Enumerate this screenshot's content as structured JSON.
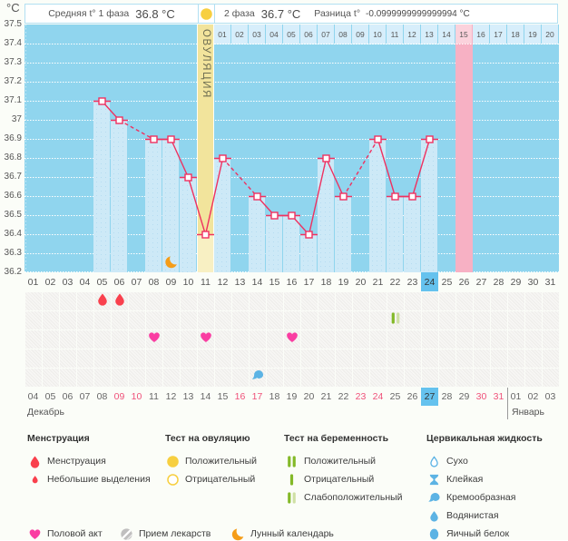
{
  "header": {
    "unit_label": "°C",
    "phase1_label": "Средняя t° 1 фаза",
    "phase1_value": "36.8 °C",
    "phase2_label": "2 фаза",
    "phase2_value": "36.7 °C",
    "diff_label": "Разница t°",
    "diff_value": "-0.0999999999999994 °C"
  },
  "chart_data": {
    "type": "line",
    "title": "Basal body temperature chart",
    "ylabel": "°C",
    "ylim": [
      36.2,
      37.5
    ],
    "yticks": [
      "37.5",
      "37.4",
      "37.3",
      "37.2",
      "37.1",
      "37",
      "36.9",
      "36.8",
      "36.7",
      "36.6",
      "36.5",
      "36.4",
      "36.3",
      "36.2"
    ],
    "x_days": [
      "01",
      "02",
      "03",
      "04",
      "05",
      "06",
      "07",
      "08",
      "09",
      "10",
      "11",
      "12",
      "13",
      "14",
      "15",
      "16",
      "17",
      "18",
      "19",
      "20",
      "21",
      "22",
      "23",
      "24",
      "25",
      "26",
      "27",
      "28",
      "29",
      "30",
      "31"
    ],
    "temps_by_day": {
      "5": 37.1,
      "6": 37.0,
      "8": 36.9,
      "9": 36.9,
      "10": 36.7,
      "11": 36.4,
      "12": 36.8,
      "14": 36.6,
      "15": 36.5,
      "16": 36.5,
      "17": 36.4,
      "18": 36.8,
      "19": 36.6,
      "21": 36.9,
      "22": 36.6,
      "23": 36.6,
      "24": 36.9
    },
    "ovulation_day": 11,
    "ovulation_label": "ОВУЛЯЦИЯ",
    "dpo_labels": [
      "01",
      "02",
      "03",
      "04",
      "05",
      "06",
      "07",
      "08",
      "09",
      "10",
      "11",
      "12",
      "13",
      "14",
      "15",
      "16",
      "17",
      "18",
      "19",
      "20"
    ],
    "dpo_highlight": "15",
    "expected_period_day": 26,
    "today_day": 24,
    "moon_day": 9,
    "line_color": "#ef3160",
    "bg_color": "#90d5ee",
    "bar_color": "#cde9f7",
    "ovulation_band_color": "#f2e49c",
    "pink_column_color": "#f7b1c4"
  },
  "markers": {
    "row_names": [
      "menstruation",
      "tests",
      "intercourse",
      "medication",
      "fluid"
    ],
    "items": [
      {
        "row": 0,
        "day": 5,
        "icon": "drop-red"
      },
      {
        "row": 0,
        "day": 6,
        "icon": "drop-red"
      },
      {
        "row": 1,
        "day": 22,
        "icon": "preg-weak"
      },
      {
        "row": 2,
        "day": 8,
        "icon": "heart"
      },
      {
        "row": 2,
        "day": 11,
        "icon": "heart"
      },
      {
        "row": 2,
        "day": 16,
        "icon": "heart"
      },
      {
        "row": 4,
        "day": 14,
        "icon": "fluid-creamy"
      }
    ]
  },
  "dates": {
    "month_left": "Декабрь",
    "month_right": "Январь",
    "cells": [
      {
        "d": "04"
      },
      {
        "d": "05"
      },
      {
        "d": "06"
      },
      {
        "d": "07"
      },
      {
        "d": "08"
      },
      {
        "d": "09",
        "weekend": true
      },
      {
        "d": "10",
        "weekend": true
      },
      {
        "d": "11"
      },
      {
        "d": "12"
      },
      {
        "d": "13"
      },
      {
        "d": "14"
      },
      {
        "d": "15"
      },
      {
        "d": "16",
        "weekend": true
      },
      {
        "d": "17",
        "weekend": true
      },
      {
        "d": "18"
      },
      {
        "d": "19"
      },
      {
        "d": "20"
      },
      {
        "d": "21"
      },
      {
        "d": "22"
      },
      {
        "d": "23",
        "weekend": true
      },
      {
        "d": "24",
        "weekend": true
      },
      {
        "d": "25"
      },
      {
        "d": "26"
      },
      {
        "d": "27",
        "today": true
      },
      {
        "d": "28"
      },
      {
        "d": "29"
      },
      {
        "d": "30",
        "weekend": true
      },
      {
        "d": "31",
        "weekend": true
      },
      {
        "d": "01",
        "january": true
      },
      {
        "d": "02",
        "january": true
      },
      {
        "d": "03",
        "january": true
      }
    ]
  },
  "legend": {
    "columns": [
      {
        "title": "Менструация",
        "items": [
          {
            "icon": "drop-red",
            "label": "Менструация"
          },
          {
            "icon": "drop-red-small",
            "label": "Небольшие выделения"
          }
        ]
      },
      {
        "title": "Тест на овуляцию",
        "items": [
          {
            "icon": "circle-yellow",
            "label": "Положительный"
          },
          {
            "icon": "circle-yellow-outline",
            "label": "Отрицательный"
          }
        ]
      },
      {
        "title": "Тест на беременность",
        "items": [
          {
            "icon": "preg-positive",
            "label": "Положительный"
          },
          {
            "icon": "preg-negative",
            "label": "Отрицательный"
          },
          {
            "icon": "preg-weak",
            "label": "Слабоположительный"
          }
        ]
      },
      {
        "title": "Цервикальная жидкость",
        "items": [
          {
            "icon": "fluid-dry",
            "label": "Сухо"
          },
          {
            "icon": "fluid-sticky",
            "label": "Клейкая"
          },
          {
            "icon": "fluid-creamy",
            "label": "Кремообразная"
          },
          {
            "icon": "fluid-watery",
            "label": "Водянистая"
          },
          {
            "icon": "fluid-eggwhite",
            "label": "Яичный белок"
          }
        ]
      }
    ],
    "actions": [
      {
        "icon": "heart",
        "label": "Половой акт"
      },
      {
        "icon": "pill",
        "label": "Прием лекарств"
      },
      {
        "icon": "moon",
        "label": "Лунный календарь"
      }
    ]
  },
  "colors": {
    "red": "#f9404d",
    "heart": "#fa3da2",
    "yellow": "#f7cf40",
    "green_dark": "#83b928",
    "green_light": "#cfe0a4",
    "blue_icon": "#5cb3e4",
    "gray_pill": "#c0bfbf",
    "moon": "#f59d18"
  }
}
